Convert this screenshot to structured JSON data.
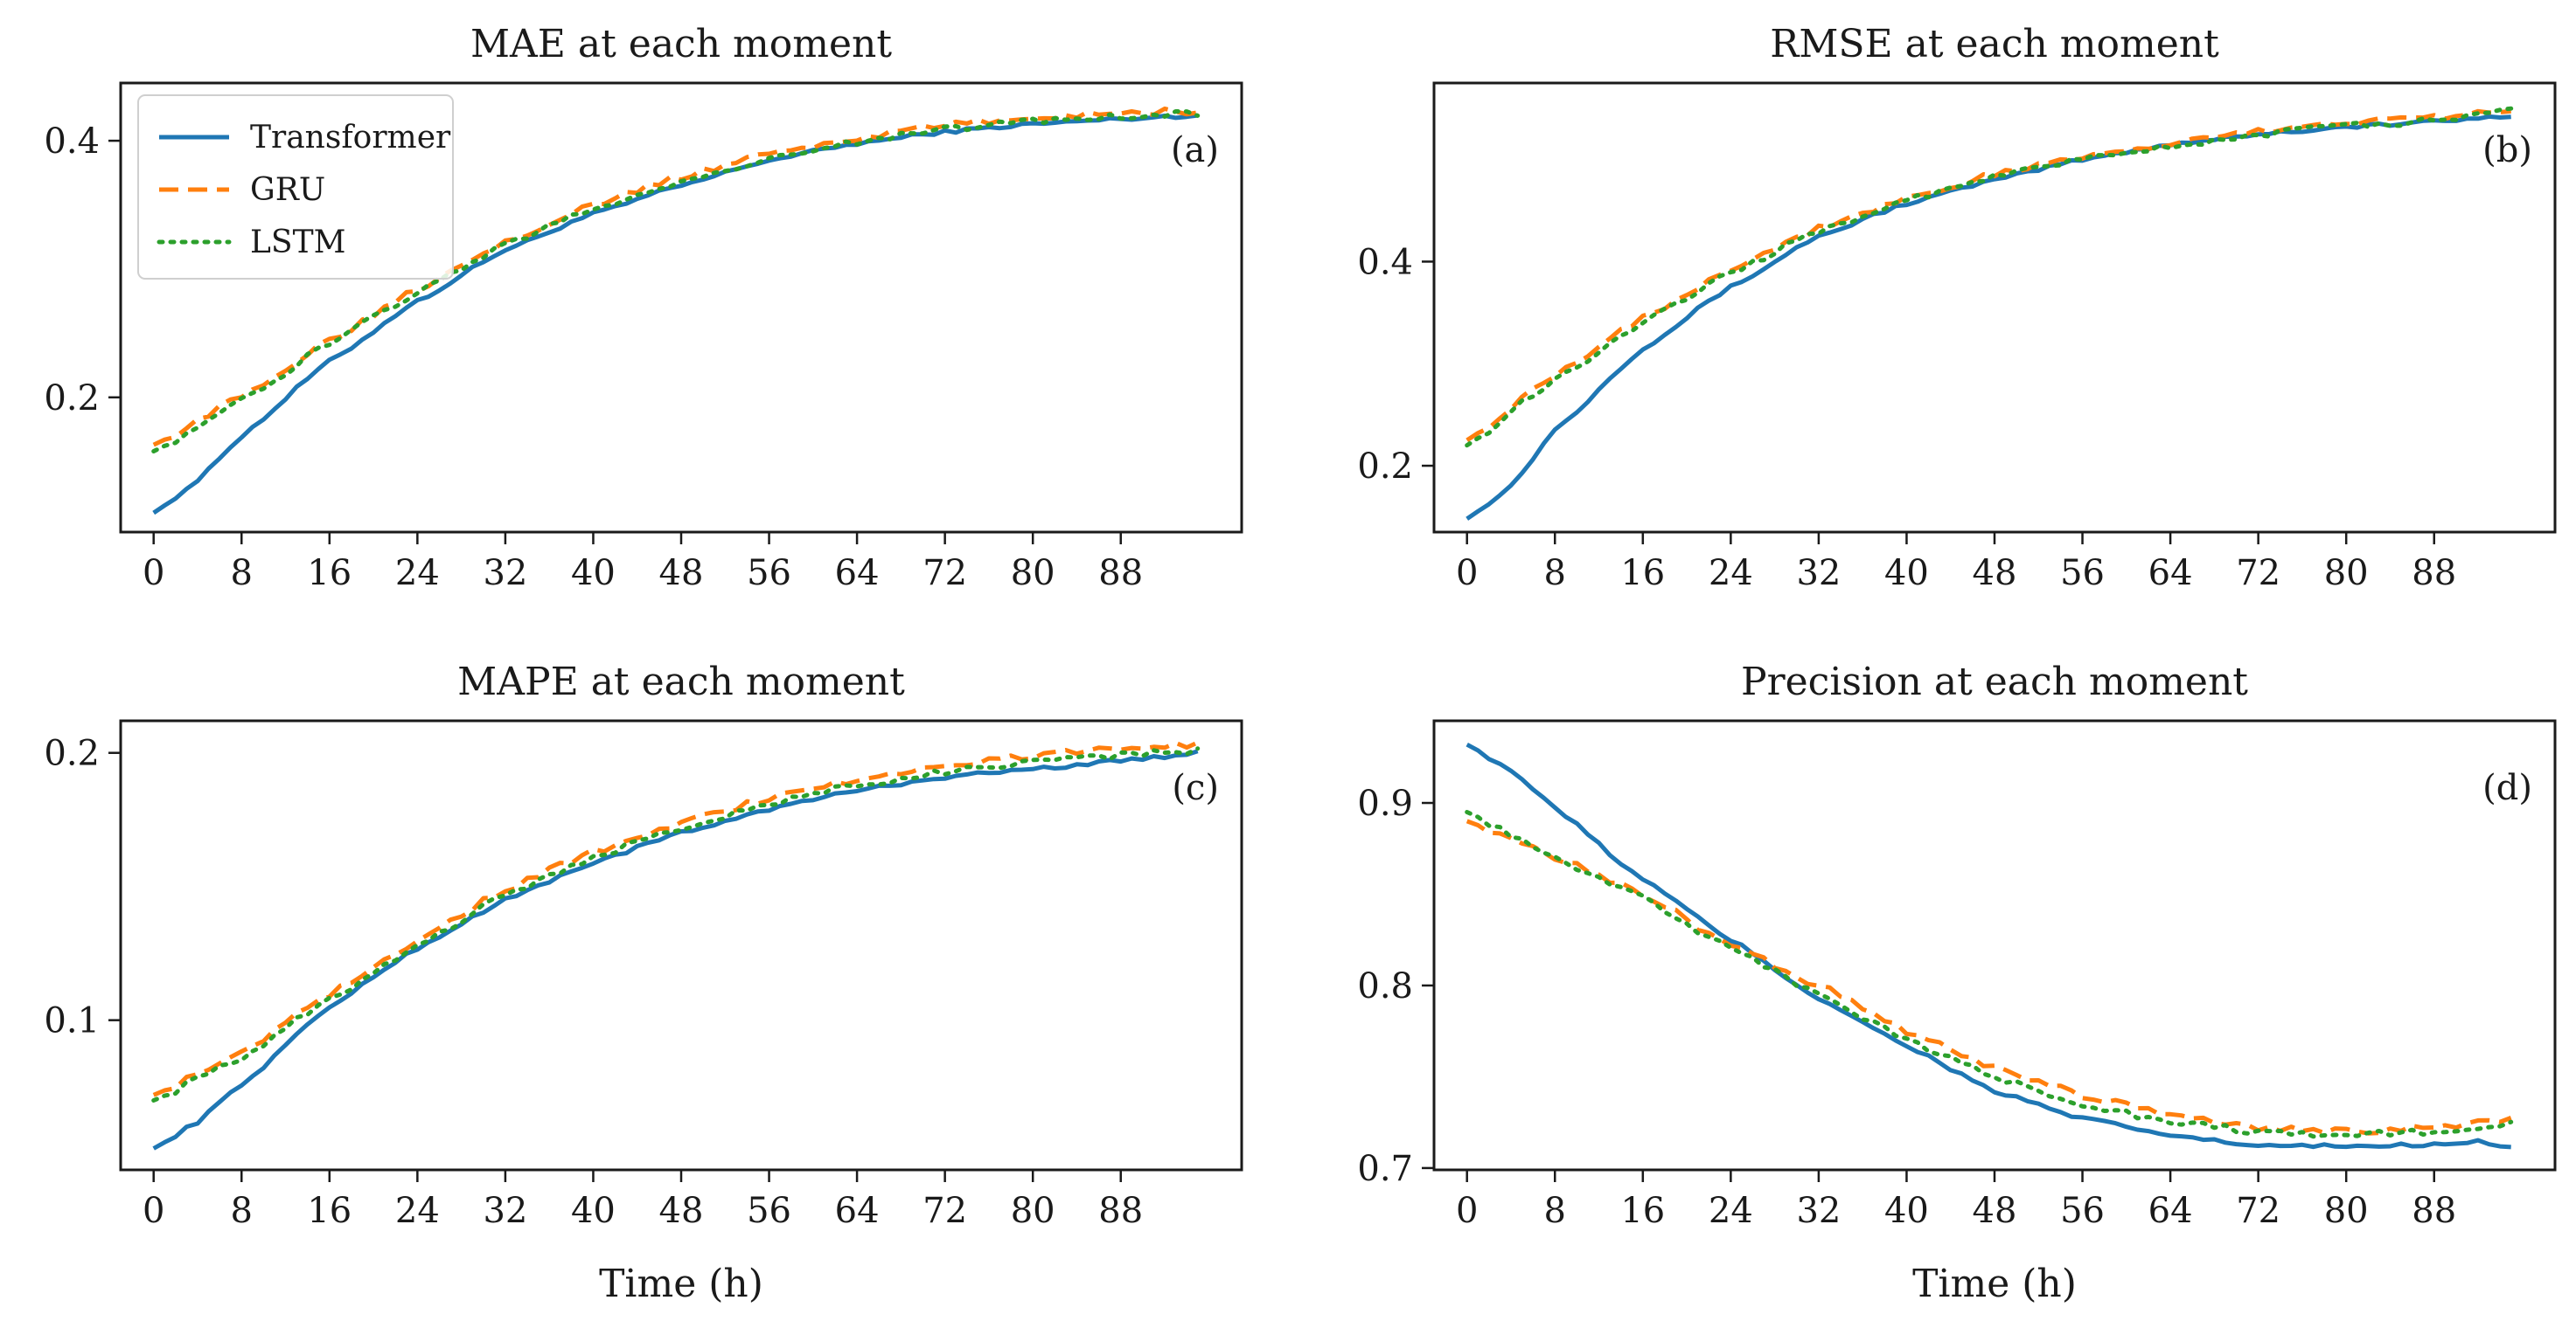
{
  "figure": {
    "legend_location": "top-left of panel (a)",
    "series_styles": [
      {
        "name": "Transformer",
        "color": "#1f77b4",
        "dash": "solid"
      },
      {
        "name": "GRU",
        "color": "#ff7f0e",
        "dash": "dashed"
      },
      {
        "name": "LSTM",
        "color": "#2ca02c",
        "dash": "dotted"
      }
    ]
  },
  "chart_data": [
    {
      "type": "line",
      "panel": "a",
      "title": "MAE at each moment",
      "panel_tag": "(a)",
      "xlabel": "",
      "ylabel": "",
      "xlim": [
        -3,
        99
      ],
      "ylim": [
        0.095,
        0.445
      ],
      "xticks": [
        0,
        8,
        16,
        24,
        32,
        40,
        48,
        56,
        64,
        72,
        80,
        88
      ],
      "yticks": [
        0.2,
        0.4
      ],
      "ytick_labels": [
        "0.2",
        "0.4"
      ],
      "legend": true,
      "series": [
        {
          "name": "Transformer",
          "key": [
            [
              0,
              0.11
            ],
            [
              4,
              0.135
            ],
            [
              8,
              0.17
            ],
            [
              16,
              0.228
            ],
            [
              24,
              0.275
            ],
            [
              32,
              0.315
            ],
            [
              40,
              0.343
            ],
            [
              48,
              0.365
            ],
            [
              56,
              0.385
            ],
            [
              64,
              0.398
            ],
            [
              72,
              0.407
            ],
            [
              80,
              0.413
            ],
            [
              88,
              0.417
            ],
            [
              95,
              0.42
            ]
          ]
        },
        {
          "name": "GRU",
          "key": [
            [
              0,
              0.163
            ],
            [
              8,
              0.2
            ],
            [
              16,
              0.245
            ],
            [
              24,
              0.285
            ],
            [
              32,
              0.322
            ],
            [
              40,
              0.35
            ],
            [
              48,
              0.372
            ],
            [
              56,
              0.39
            ],
            [
              64,
              0.402
            ],
            [
              72,
              0.412
            ],
            [
              80,
              0.418
            ],
            [
              88,
              0.422
            ],
            [
              95,
              0.423
            ]
          ]
        },
        {
          "name": "LSTM",
          "key": [
            [
              0,
              0.158
            ],
            [
              8,
              0.197
            ],
            [
              16,
              0.242
            ],
            [
              24,
              0.282
            ],
            [
              32,
              0.319
            ],
            [
              40,
              0.347
            ],
            [
              48,
              0.368
            ],
            [
              56,
              0.386
            ],
            [
              64,
              0.399
            ],
            [
              72,
              0.409
            ],
            [
              80,
              0.415
            ],
            [
              88,
              0.419
            ],
            [
              95,
              0.421
            ]
          ]
        }
      ]
    },
    {
      "type": "line",
      "panel": "b",
      "title": "RMSE at each moment",
      "panel_tag": "(b)",
      "xlabel": "",
      "ylabel": "",
      "xlim": [
        -3,
        99
      ],
      "ylim": [
        0.135,
        0.575
      ],
      "xticks": [
        0,
        8,
        16,
        24,
        32,
        40,
        48,
        56,
        64,
        72,
        80,
        88
      ],
      "yticks": [
        0.2,
        0.4
      ],
      "ytick_labels": [
        "0.2",
        "0.4"
      ],
      "legend": false,
      "series": [
        {
          "name": "Transformer",
          "key": [
            [
              0,
              0.148
            ],
            [
              4,
              0.18
            ],
            [
              8,
              0.235
            ],
            [
              16,
              0.315
            ],
            [
              24,
              0.375
            ],
            [
              32,
              0.425
            ],
            [
              40,
              0.457
            ],
            [
              48,
              0.48
            ],
            [
              56,
              0.5
            ],
            [
              64,
              0.515
            ],
            [
              72,
              0.525
            ],
            [
              80,
              0.532
            ],
            [
              88,
              0.537
            ],
            [
              95,
              0.543
            ]
          ]
        },
        {
          "name": "GRU",
          "key": [
            [
              0,
              0.225
            ],
            [
              8,
              0.29
            ],
            [
              16,
              0.345
            ],
            [
              24,
              0.393
            ],
            [
              32,
              0.433
            ],
            [
              40,
              0.462
            ],
            [
              48,
              0.485
            ],
            [
              56,
              0.502
            ],
            [
              64,
              0.516
            ],
            [
              72,
              0.527
            ],
            [
              80,
              0.537
            ],
            [
              88,
              0.542
            ],
            [
              95,
              0.55
            ]
          ]
        },
        {
          "name": "LSTM",
          "key": [
            [
              0,
              0.22
            ],
            [
              8,
              0.285
            ],
            [
              16,
              0.34
            ],
            [
              24,
              0.39
            ],
            [
              32,
              0.43
            ],
            [
              40,
              0.46
            ],
            [
              48,
              0.483
            ],
            [
              56,
              0.5
            ],
            [
              64,
              0.513
            ],
            [
              72,
              0.524
            ],
            [
              80,
              0.533
            ],
            [
              88,
              0.538
            ],
            [
              95,
              0.547
            ]
          ]
        }
      ]
    },
    {
      "type": "line",
      "panel": "c",
      "title": "MAPE at each moment",
      "panel_tag": "(c)",
      "xlabel": "Time (h)",
      "ylabel": "",
      "xlim": [
        -3,
        99
      ],
      "ylim": [
        0.044,
        0.212
      ],
      "xticks": [
        0,
        8,
        16,
        24,
        32,
        40,
        48,
        56,
        64,
        72,
        80,
        88
      ],
      "yticks": [
        0.1,
        0.2
      ],
      "ytick_labels": [
        "0.1",
        "0.2"
      ],
      "legend": false,
      "series": [
        {
          "name": "Transformer",
          "key": [
            [
              0,
              0.052
            ],
            [
              4,
              0.062
            ],
            [
              8,
              0.076
            ],
            [
              16,
              0.105
            ],
            [
              24,
              0.127
            ],
            [
              32,
              0.145
            ],
            [
              40,
              0.159
            ],
            [
              48,
              0.17
            ],
            [
              56,
              0.179
            ],
            [
              64,
              0.186
            ],
            [
              72,
              0.191
            ],
            [
              80,
              0.194
            ],
            [
              88,
              0.197
            ],
            [
              95,
              0.2
            ]
          ]
        },
        {
          "name": "GRU",
          "key": [
            [
              0,
              0.072
            ],
            [
              8,
              0.088
            ],
            [
              16,
              0.11
            ],
            [
              24,
              0.13
            ],
            [
              32,
              0.149
            ],
            [
              40,
              0.163
            ],
            [
              48,
              0.174
            ],
            [
              56,
              0.183
            ],
            [
              64,
              0.19
            ],
            [
              72,
              0.195
            ],
            [
              80,
              0.199
            ],
            [
              88,
              0.202
            ],
            [
              95,
              0.203
            ]
          ]
        },
        {
          "name": "LSTM",
          "key": [
            [
              0,
              0.07
            ],
            [
              8,
              0.086
            ],
            [
              16,
              0.108
            ],
            [
              24,
              0.128
            ],
            [
              32,
              0.147
            ],
            [
              40,
              0.161
            ],
            [
              48,
              0.172
            ],
            [
              56,
              0.181
            ],
            [
              64,
              0.188
            ],
            [
              72,
              0.193
            ],
            [
              80,
              0.197
            ],
            [
              88,
              0.199
            ],
            [
              95,
              0.201
            ]
          ]
        }
      ]
    },
    {
      "type": "line",
      "panel": "d",
      "title": "Precision at each moment",
      "panel_tag": "(d)",
      "xlabel": "Time (h)",
      "ylabel": "",
      "xlim": [
        -3,
        99
      ],
      "ylim": [
        0.699,
        0.945
      ],
      "xticks": [
        0,
        8,
        16,
        24,
        32,
        40,
        48,
        56,
        64,
        72,
        80,
        88
      ],
      "yticks": [
        0.7,
        0.8,
        0.9
      ],
      "ytick_labels": [
        "0.7",
        "0.8",
        "0.9"
      ],
      "legend": false,
      "series": [
        {
          "name": "Transformer",
          "key": [
            [
              0,
              0.932
            ],
            [
              4,
              0.918
            ],
            [
              8,
              0.897
            ],
            [
              16,
              0.858
            ],
            [
              24,
              0.825
            ],
            [
              32,
              0.793
            ],
            [
              40,
              0.767
            ],
            [
              48,
              0.742
            ],
            [
              56,
              0.727
            ],
            [
              64,
              0.718
            ],
            [
              72,
              0.712
            ],
            [
              80,
              0.712
            ],
            [
              88,
              0.713
            ],
            [
              92,
              0.715
            ],
            [
              95,
              0.711
            ]
          ]
        },
        {
          "name": "GRU",
          "key": [
            [
              0,
              0.89
            ],
            [
              8,
              0.87
            ],
            [
              16,
              0.85
            ],
            [
              24,
              0.822
            ],
            [
              32,
              0.8
            ],
            [
              40,
              0.775
            ],
            [
              48,
              0.755
            ],
            [
              56,
              0.74
            ],
            [
              64,
              0.73
            ],
            [
              72,
              0.722
            ],
            [
              80,
              0.72
            ],
            [
              88,
              0.722
            ],
            [
              95,
              0.727
            ]
          ]
        },
        {
          "name": "LSTM",
          "key": [
            [
              0,
              0.895
            ],
            [
              8,
              0.87
            ],
            [
              16,
              0.848
            ],
            [
              24,
              0.82
            ],
            [
              32,
              0.795
            ],
            [
              40,
              0.77
            ],
            [
              48,
              0.75
            ],
            [
              56,
              0.735
            ],
            [
              64,
              0.725
            ],
            [
              72,
              0.72
            ],
            [
              80,
              0.718
            ],
            [
              88,
              0.72
            ],
            [
              95,
              0.725
            ]
          ]
        }
      ]
    }
  ]
}
